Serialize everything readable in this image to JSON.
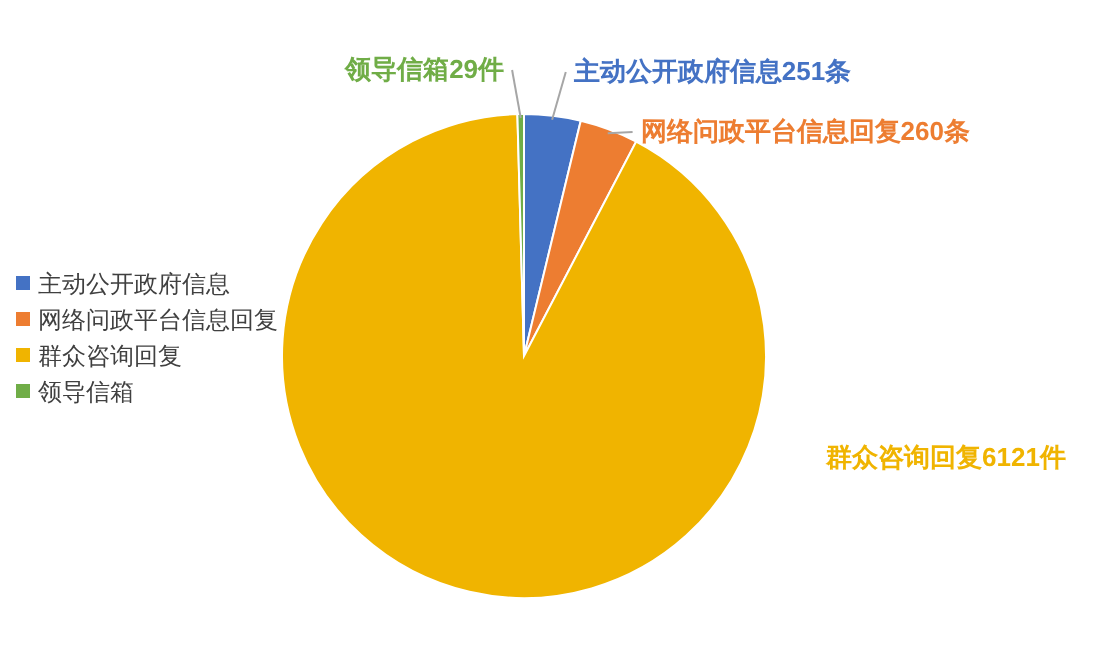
{
  "chart_data": {
    "type": "pie",
    "categories": [
      "主动公开政府信息",
      "网络问政平台信息回复",
      "群众咨询回复",
      "领导信箱"
    ],
    "values": [
      251,
      260,
      6121,
      29
    ],
    "colors": [
      "#4472c4",
      "#ed7d31",
      "#f0b400",
      "#70ad47"
    ],
    "value_labels": [
      "主动公开政府信息251条",
      "网络问政平台信息回复260条",
      "群众咨询回复6121件",
      "领导信箱29件"
    ],
    "legend": "left"
  }
}
